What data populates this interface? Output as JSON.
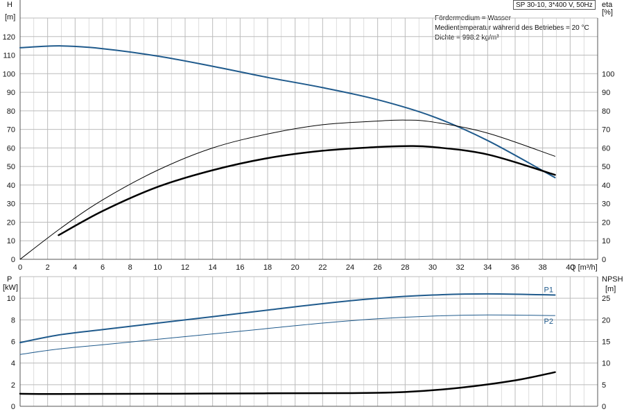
{
  "header": {
    "title": "SP 30-10, 3*400 V, 50Hz",
    "info_lines": [
      "Fördermedium = Wasser",
      "Medientemperatur während des Betriebes = 20 °C",
      "Dichte = 998.2 kg/m³"
    ]
  },
  "colors": {
    "blue": "#1f5a8c",
    "black": "#000000",
    "grid": "#bbbbbb",
    "axis": "#555555"
  },
  "chart_data": [
    {
      "type": "line",
      "name": "upper",
      "x_label_text": "Q [m³/h]",
      "y_left_title": "H",
      "y_left_unit": "[m]",
      "y_right_title": "eta",
      "y_right_unit": "[%]",
      "xlim": [
        0,
        42
      ],
      "ylim": [
        0,
        130
      ],
      "x_ticks": [
        0,
        2,
        4,
        6,
        8,
        10,
        12,
        14,
        16,
        18,
        20,
        22,
        24,
        26,
        28,
        30,
        32,
        34,
        36,
        38,
        40
      ],
      "y_left_ticks": [
        0,
        10,
        20,
        30,
        40,
        50,
        60,
        70,
        80,
        90,
        100,
        110,
        120
      ],
      "y_right_ticks": [
        0,
        10,
        20,
        30,
        40,
        50,
        60,
        70,
        80,
        90,
        100
      ],
      "grid": true,
      "series": [
        {
          "color": "#1f5a8c",
          "width": 2,
          "x": [
            0,
            3,
            6,
            10,
            14,
            18,
            22,
            26,
            30,
            34,
            38.9
          ],
          "y": [
            114,
            115,
            113.5,
            109.5,
            104,
            98,
            92.5,
            86,
            77,
            64,
            44
          ]
        },
        {
          "color": "#000000",
          "width": 1,
          "x": [
            0,
            3,
            6,
            10,
            14,
            18,
            22,
            26,
            28,
            30,
            34,
            38.9
          ],
          "y": [
            0,
            17,
            32,
            48,
            60,
            67.5,
            72.5,
            74.5,
            75,
            74,
            68,
            55.5
          ]
        },
        {
          "color": "#000000",
          "width": 2.5,
          "x": [
            2.8,
            6,
            10,
            14,
            18,
            22,
            26,
            28,
            30,
            34,
            38.9
          ],
          "y": [
            13,
            26,
            39,
            48,
            54.5,
            58.5,
            60.5,
            61,
            60.5,
            56.5,
            45.5
          ]
        }
      ]
    },
    {
      "type": "line",
      "name": "lower",
      "y_left_title": "P",
      "y_left_unit": "[kW]",
      "y_right_title": "NPSH",
      "y_right_unit": "[m]",
      "xlim": [
        0,
        42
      ],
      "ylim_left": [
        0,
        12
      ],
      "ylim_right": [
        0,
        30
      ],
      "y_left_ticks": [
        0,
        2,
        4,
        6,
        8,
        10
      ],
      "y_right_ticks": [
        0,
        5,
        10,
        15,
        20,
        25
      ],
      "grid": true,
      "series": [
        {
          "name": "P1",
          "color": "#1f5a8c",
          "width": 2,
          "axis": "left",
          "x": [
            0,
            2.8,
            6,
            10,
            14,
            18,
            22,
            26,
            30,
            34,
            38.9
          ],
          "y": [
            5.9,
            6.6,
            7.1,
            7.7,
            8.3,
            8.9,
            9.5,
            10.0,
            10.3,
            10.4,
            10.3
          ]
        },
        {
          "name": "P2",
          "color": "#1f5a8c",
          "width": 1,
          "axis": "left",
          "x": [
            0,
            2.8,
            6,
            10,
            14,
            18,
            22,
            26,
            30,
            34,
            38.9
          ],
          "y": [
            4.8,
            5.3,
            5.7,
            6.2,
            6.7,
            7.2,
            7.7,
            8.1,
            8.35,
            8.45,
            8.4
          ]
        },
        {
          "name": "",
          "color": "#000000",
          "width": 2.5,
          "axis": "right",
          "x": [
            0,
            2.8,
            10,
            18,
            24,
            28,
            32,
            36,
            38.9
          ],
          "y": [
            2.9,
            2.85,
            2.9,
            3.0,
            3.05,
            3.3,
            4.3,
            6.0,
            7.9
          ]
        }
      ]
    }
  ]
}
